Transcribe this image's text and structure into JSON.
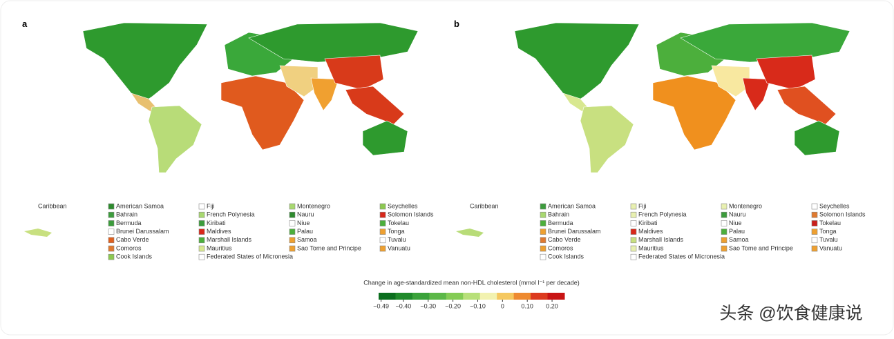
{
  "panels": [
    {
      "label": "a",
      "inset_title": "Caribbean",
      "legend": [
        {
          "name": "American Samoa",
          "color": "#2e8b2e"
        },
        {
          "name": "Bahrain",
          "color": "#3c9c3c"
        },
        {
          "name": "Bermuda",
          "color": "#3c9c3c"
        },
        {
          "name": "Brunei Darussalam",
          "color": "#ffffff"
        },
        {
          "name": "Cabo Verde",
          "color": "#e0601e"
        },
        {
          "name": "Comoros",
          "color": "#e07a30"
        },
        {
          "name": "Cook Islands",
          "color": "#8cc850"
        },
        {
          "name": "Fiji",
          "color": "#ffffff"
        },
        {
          "name": "French Polynesia",
          "color": "#a8d870"
        },
        {
          "name": "Kiribati",
          "color": "#3c9c3c"
        },
        {
          "name": "Maldives",
          "color": "#d8281a"
        },
        {
          "name": "Marshall Islands",
          "color": "#4caf3c"
        },
        {
          "name": "Mauritius",
          "color": "#d8e890"
        },
        {
          "name": "Federated States of Micronesia",
          "color": "#ffffff"
        },
        {
          "name": "Montenegro",
          "color": "#a8d870"
        },
        {
          "name": "Nauru",
          "color": "#2e8b2e"
        },
        {
          "name": "Niue",
          "color": "#ffffff"
        },
        {
          "name": "Palau",
          "color": "#4caf3c"
        },
        {
          "name": "Samoa",
          "color": "#eea030"
        },
        {
          "name": "Sao Tome and Principe",
          "color": "#eea030"
        },
        {
          "name": "Seychelles",
          "color": "#8cc850"
        },
        {
          "name": "Solomon Islands",
          "color": "#d8281a"
        },
        {
          "name": "Tokelau",
          "color": "#4caf3c"
        },
        {
          "name": "Tonga",
          "color": "#eea030"
        },
        {
          "name": "Tuvalu",
          "color": "#ffffff"
        },
        {
          "name": "Vanuatu",
          "color": "#eea030"
        }
      ]
    },
    {
      "label": "b",
      "inset_title": "Caribbean",
      "legend": [
        {
          "name": "American Samoa",
          "color": "#3c9c3c"
        },
        {
          "name": "Bahrain",
          "color": "#a8d870"
        },
        {
          "name": "Bermuda",
          "color": "#4caf3c"
        },
        {
          "name": "Brunei Darussalam",
          "color": "#eea030"
        },
        {
          "name": "Cabo Verde",
          "color": "#e07a30"
        },
        {
          "name": "Comoros",
          "color": "#eea030"
        },
        {
          "name": "Cook Islands",
          "color": "#ffffff"
        },
        {
          "name": "Fiji",
          "color": "#e8f0b0"
        },
        {
          "name": "French Polynesia",
          "color": "#e8f0b0"
        },
        {
          "name": "Kiribati",
          "color": "#ffffff"
        },
        {
          "name": "Maldives",
          "color": "#d8281a"
        },
        {
          "name": "Marshall Islands",
          "color": "#c8e080"
        },
        {
          "name": "Mauritius",
          "color": "#e8f0b0"
        },
        {
          "name": "Federated States of Micronesia",
          "color": "#ffffff"
        },
        {
          "name": "Montenegro",
          "color": "#e8f0b0"
        },
        {
          "name": "Nauru",
          "color": "#3c9c3c"
        },
        {
          "name": "Niue",
          "color": "#ffffff"
        },
        {
          "name": "Palau",
          "color": "#4caf3c"
        },
        {
          "name": "Samoa",
          "color": "#eea030"
        },
        {
          "name": "Sao Tome and Principe",
          "color": "#eea030"
        },
        {
          "name": "Seychelles",
          "color": "#ffffff"
        },
        {
          "name": "Solomon Islands",
          "color": "#e07a30"
        },
        {
          "name": "Tokelau",
          "color": "#c81e1a"
        },
        {
          "name": "Tonga",
          "color": "#eea030"
        },
        {
          "name": "Tuvalu",
          "color": "#ffffff"
        },
        {
          "name": "Vanuatu",
          "color": "#eea030"
        }
      ]
    }
  ],
  "colorbar": {
    "title": "Change in age-standardized mean non-HDL cholesterol (mmol l⁻¹ per decade)",
    "lim": [
      -0.5,
      0.25
    ],
    "ticks": [
      {
        "value": -0.49,
        "label": "−0.49"
      },
      {
        "value": -0.4,
        "label": "−0.40"
      },
      {
        "value": -0.3,
        "label": "−0.30"
      },
      {
        "value": -0.2,
        "label": "−0.20"
      },
      {
        "value": -0.1,
        "label": "−0.10"
      },
      0,
      {
        "value": 0.1,
        "label": "0.10"
      },
      {
        "value": 0.2,
        "label": "0.20"
      }
    ],
    "colors": [
      "#0b6e1e",
      "#1f8a2a",
      "#3aa23a",
      "#5cb848",
      "#84cc55",
      "#b8e07a",
      "#f2f2b0",
      "#f5c860",
      "#ee8a30",
      "#dc3a1e",
      "#c81414"
    ]
  },
  "watermark": "头条 @饮食健康说"
}
